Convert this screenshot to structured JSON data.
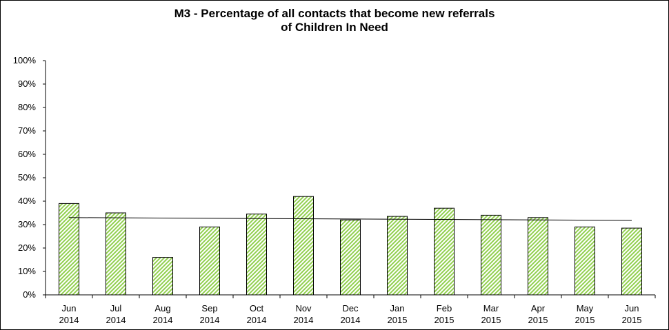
{
  "chart_data": {
    "type": "bar",
    "title_lines": [
      "M3 - Percentage of all contacts that become new referrals",
      "of Children In Need"
    ],
    "categories": [
      [
        "Jun",
        "2014"
      ],
      [
        "Jul",
        "2014"
      ],
      [
        "Aug",
        "2014"
      ],
      [
        "Sep",
        "2014"
      ],
      [
        "Oct",
        "2014"
      ],
      [
        "Nov",
        "2014"
      ],
      [
        "Dec",
        "2014"
      ],
      [
        "Jan",
        "2015"
      ],
      [
        "Feb",
        "2015"
      ],
      [
        "Mar",
        "2015"
      ],
      [
        "Apr",
        "2015"
      ],
      [
        "May",
        "2015"
      ],
      [
        "Jun",
        "2015"
      ]
    ],
    "values": [
      39,
      35,
      16,
      29,
      34.5,
      42,
      32,
      33.5,
      37,
      34,
      33,
      29,
      28.5
    ],
    "yticks": [
      "0%",
      "10%",
      "20%",
      "30%",
      "40%",
      "50%",
      "60%",
      "70%",
      "80%",
      "90%",
      "100%"
    ],
    "ylim": [
      0,
      100
    ],
    "trendline": {
      "type": "linear",
      "start": 33,
      "end": 31.8
    },
    "bar_color": "#92d050",
    "bar_edge": "#000000",
    "bar_pattern": "diagonal-hatch",
    "grid": false,
    "legend": "none",
    "xlabel": "",
    "ylabel": ""
  }
}
